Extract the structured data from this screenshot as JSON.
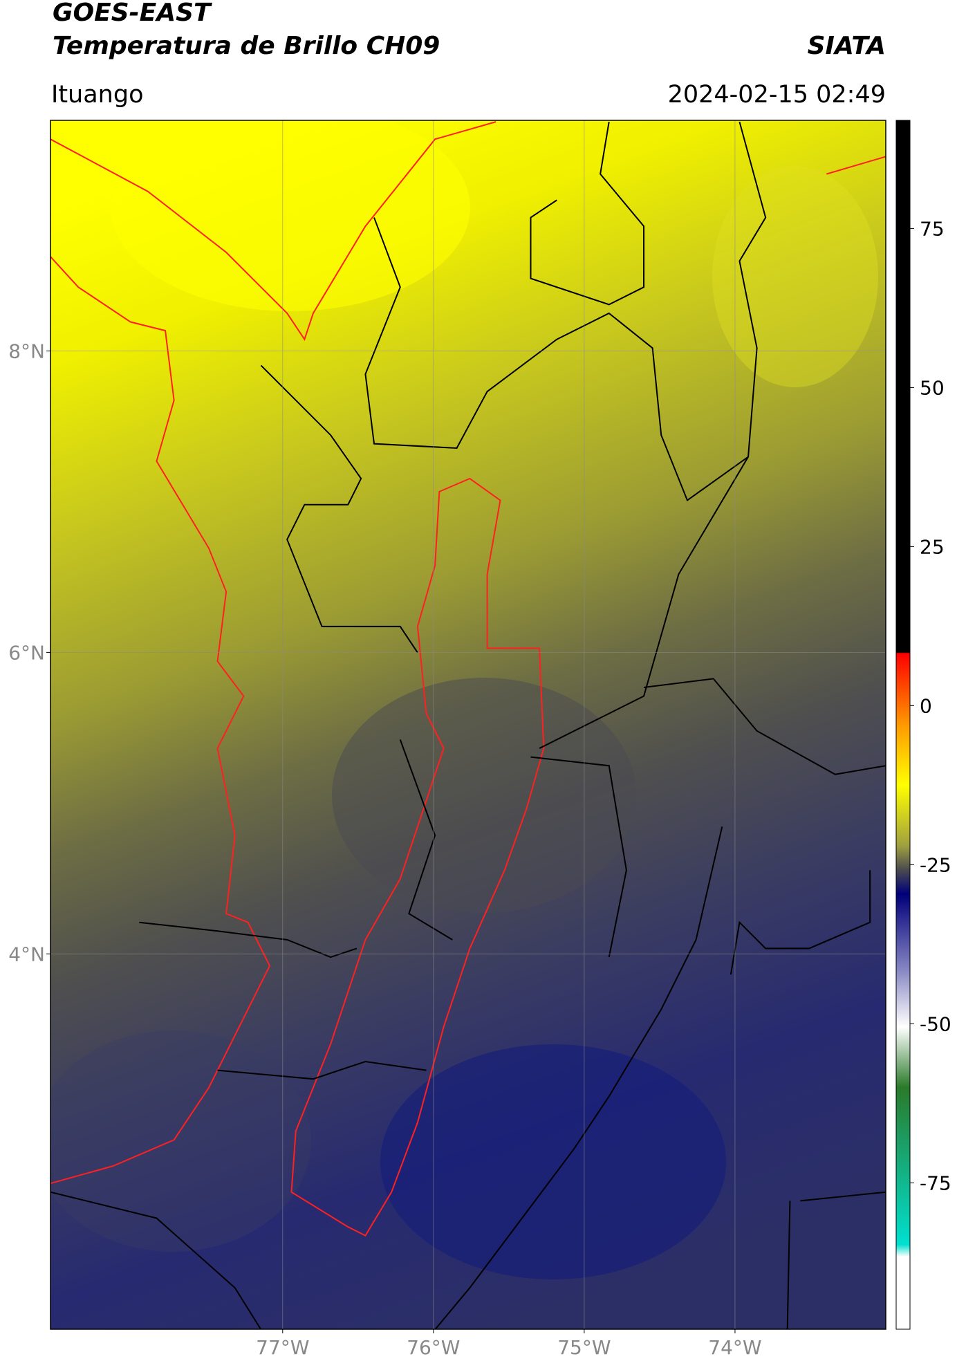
{
  "header": {
    "title": "GOES-EAST",
    "subtitle": "Temperatura de Brillo CH09",
    "agency": "SIATA",
    "region": "Ituango",
    "timestamp": "2024-02-15 02:49"
  },
  "map": {
    "lonlim": [
      -78.54,
      -73.0
    ],
    "latlim": [
      1.51,
      9.53
    ],
    "lon_ticks": [
      {
        "value": -77,
        "label": "77°W"
      },
      {
        "value": -76,
        "label": "76°W"
      },
      {
        "value": -75,
        "label": "75°W"
      },
      {
        "value": -74,
        "label": "74°W"
      }
    ],
    "lat_ticks": [
      {
        "value": 8,
        "label": "8°N"
      },
      {
        "value": 6,
        "label": "6°N"
      },
      {
        "value": 4,
        "label": "4°N"
      }
    ]
  },
  "colorbar": {
    "lim": [
      -98,
      92
    ],
    "ticks": [
      75,
      50,
      25,
      0,
      -25,
      -50,
      -75
    ]
  }
}
